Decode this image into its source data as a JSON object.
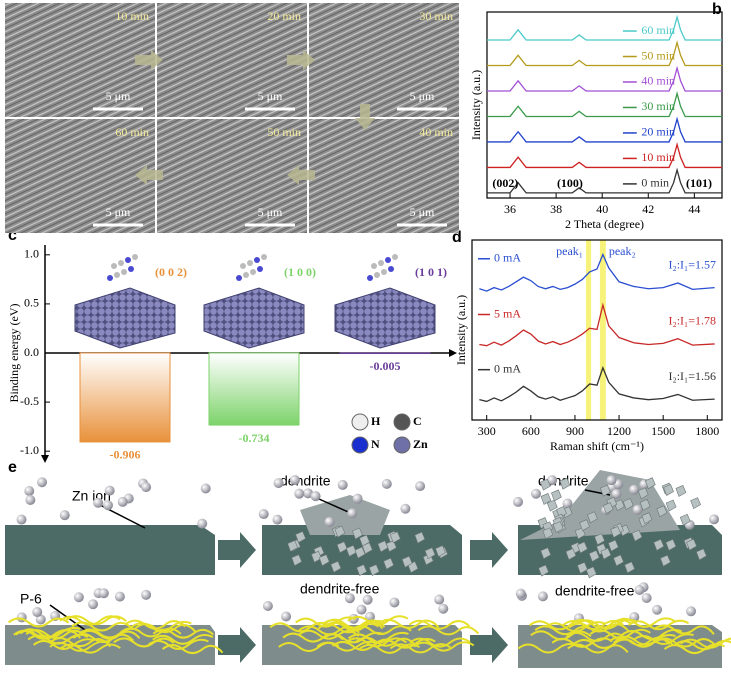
{
  "figure": {
    "panel_labels": [
      "a",
      "b",
      "c",
      "d",
      "e"
    ]
  },
  "sem": {
    "times": [
      "10 min",
      "20 min",
      "30 min",
      "60 min",
      "50 min",
      "40 min"
    ],
    "scale_bar": "5 μm"
  },
  "chart_data": [
    {
      "type": "line",
      "x_label": "2 Theta (degree)",
      "y_label": "Intensity (a.u.)",
      "xlim": [
        35,
        45.2
      ],
      "xticks": [
        36,
        38,
        40,
        42,
        44
      ],
      "ylim": [
        0,
        7.3
      ],
      "x": [
        35,
        36,
        36.35,
        36.7,
        38.7,
        39,
        39.3,
        42.9,
        43.1,
        43.25,
        43.4,
        43.6,
        45.2
      ],
      "series": [
        {
          "name": "60 min",
          "color": "#4cc9c9",
          "values": [
            6.2,
            6.2,
            6.6,
            6.2,
            6.2,
            6.4,
            6.2,
            6.2,
            6.6,
            7.1,
            6.6,
            6.2,
            6.2
          ]
        },
        {
          "name": "50 min",
          "color": "#b59a1a",
          "values": [
            5.2,
            5.2,
            5.6,
            5.2,
            5.2,
            5.4,
            5.2,
            5.2,
            5.6,
            6.1,
            5.6,
            5.2,
            5.2
          ]
        },
        {
          "name": "40 min",
          "color": "#a24fd6",
          "values": [
            4.2,
            4.2,
            4.6,
            4.2,
            4.2,
            4.4,
            4.2,
            4.2,
            4.6,
            5.1,
            4.6,
            4.2,
            4.2
          ]
        },
        {
          "name": "30 min",
          "color": "#3a9a4a",
          "values": [
            3.2,
            3.2,
            3.6,
            3.2,
            3.2,
            3.4,
            3.2,
            3.2,
            3.6,
            4.1,
            3.6,
            3.2,
            3.2
          ]
        },
        {
          "name": "20 min",
          "color": "#2244cc",
          "values": [
            2.2,
            2.2,
            2.6,
            2.2,
            2.2,
            2.4,
            2.2,
            2.2,
            2.6,
            3.1,
            2.6,
            2.2,
            2.2
          ]
        },
        {
          "name": "10 min",
          "color": "#cc2222",
          "values": [
            1.2,
            1.2,
            1.6,
            1.2,
            1.2,
            1.4,
            1.2,
            1.2,
            1.6,
            2.1,
            1.6,
            1.2,
            1.2
          ]
        },
        {
          "name": "0 min",
          "color": "#333333",
          "values": [
            0.2,
            0.2,
            0.6,
            0.2,
            0.2,
            0.4,
            0.2,
            0.2,
            0.6,
            1.1,
            0.6,
            0.2,
            0.2
          ]
        }
      ],
      "annotations": [
        {
          "text": "(002)",
          "x": 35.8
        },
        {
          "text": "(100)",
          "x": 38.6
        },
        {
          "text": "(101)",
          "x": 44.2
        }
      ]
    },
    {
      "type": "bar",
      "y_label": "Binding energy (eV)",
      "categories": [
        "(0 0 2)",
        "(1 0 0)",
        "(1 0 1)"
      ],
      "values": [
        -0.906,
        -0.734,
        -0.005
      ],
      "colors": [
        "#e8913a",
        "#7dd36a",
        "#6a3d9a"
      ],
      "ylim": [
        -1.1,
        1.1
      ],
      "yticks": [
        {
          "value": -1,
          "label": "-1.0"
        },
        -0.5,
        {
          "value": 0,
          "label": "0.0"
        },
        0.5,
        {
          "value": 1,
          "label": "1.0"
        }
      ],
      "atoms": [
        {
          "name": "H",
          "color": "#eeeeee"
        },
        {
          "name": "C",
          "color": "#555555"
        },
        {
          "name": "N",
          "color": "#1a2fd0"
        },
        {
          "name": "Zn",
          "color": "#7070a8"
        }
      ]
    },
    {
      "type": "line",
      "x_label": "Raman shift (cm⁻¹)",
      "y_label": "Intensity (a.u.)",
      "xlim": [
        200,
        1900
      ],
      "xticks": [
        300,
        600,
        900,
        1200,
        1500,
        1800
      ],
      "ylim": [
        0,
        3.1
      ],
      "x": [
        250,
        300,
        350,
        400,
        450,
        500,
        550,
        600,
        650,
        700,
        750,
        800,
        850,
        900,
        950,
        1000,
        1050,
        1090,
        1130,
        1200,
        1300,
        1400,
        1500,
        1600,
        1700,
        1850
      ],
      "series": [
        {
          "name": "0 mA",
          "color": "#2a4fd0",
          "values": [
            2.26,
            2.22,
            2.28,
            2.24,
            2.3,
            2.38,
            2.46,
            2.4,
            2.3,
            2.26,
            2.3,
            2.25,
            2.28,
            2.34,
            2.42,
            2.55,
            2.6,
            2.85,
            2.62,
            2.38,
            2.3,
            2.26,
            2.28,
            2.36,
            2.25,
            2.28
          ]
        },
        {
          "name": "5 mA",
          "color": "#c82828",
          "values": [
            1.3,
            1.28,
            1.34,
            1.29,
            1.36,
            1.45,
            1.55,
            1.48,
            1.36,
            1.31,
            1.35,
            1.3,
            1.34,
            1.4,
            1.48,
            1.58,
            1.56,
            1.98,
            1.62,
            1.42,
            1.33,
            1.3,
            1.32,
            1.4,
            1.29,
            1.31
          ]
        },
        {
          "name": "0 mA",
          "color": "#333333",
          "values": [
            0.35,
            0.32,
            0.38,
            0.33,
            0.4,
            0.48,
            0.58,
            0.5,
            0.4,
            0.36,
            0.4,
            0.34,
            0.38,
            0.42,
            0.5,
            0.62,
            0.6,
            0.9,
            0.65,
            0.45,
            0.38,
            0.35,
            0.37,
            0.44,
            0.34,
            0.36
          ]
        }
      ],
      "ratios": [
        "I₂:I₁=1.57",
        "I₂:I₁=1.78",
        "I₂:I₁=1.56"
      ],
      "peak_labels": [
        "peak₁",
        "peak₂"
      ],
      "highlight_bands": [
        [
          975,
          1010
        ],
        [
          1070,
          1110
        ]
      ],
      "highlight_color": "#f6f27a"
    }
  ],
  "schematic": {
    "labels": [
      "Zn ion",
      "dendrite",
      "dendrite",
      "P-6",
      "dendrite-free",
      "dendrite-free"
    ]
  }
}
